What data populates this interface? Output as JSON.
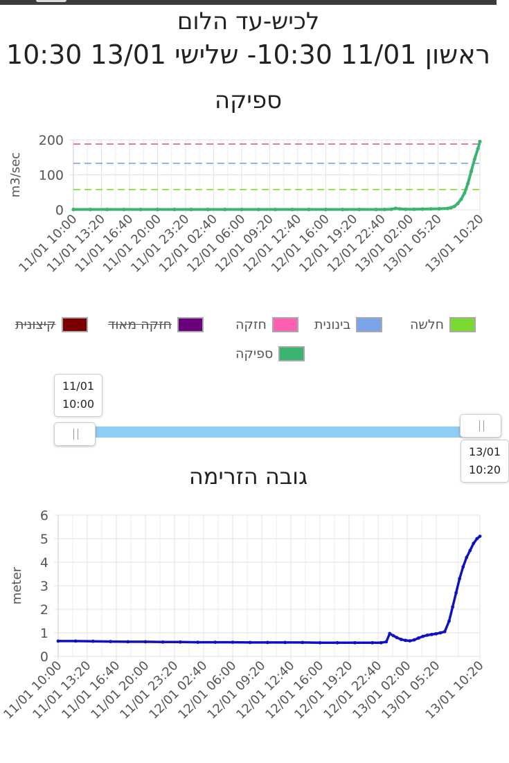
{
  "header": {
    "station_title": "לכיש-עד הלום",
    "date_range": "ראשון 11/01 10:30- שלישי 13/01 10:30"
  },
  "colors": {
    "flow": "#3cb371",
    "weak": "#7ad92e",
    "medium": "#7aa3e8",
    "strong": "#e8559b",
    "very_strong": "#6b007d",
    "extreme": "#7a0000",
    "height": "#1010c0",
    "slider": "#8fcdf2"
  },
  "legend": {
    "items": [
      {
        "label": "חלשה",
        "color": "#7ad92e",
        "active": true
      },
      {
        "label": "בינונית",
        "color": "#7aa3e8",
        "active": true
      },
      {
        "label": "חזקה",
        "color": "#ff5fb0",
        "active": true
      },
      {
        "label": "חזקה מאוד",
        "color": "#6b007d",
        "active": false
      },
      {
        "label": "קיצונית",
        "color": "#7a0000",
        "active": false
      },
      {
        "label": "ספיקה",
        "color": "#3cb371",
        "active": true
      }
    ]
  },
  "slider": {
    "start_date": "11/01",
    "start_time": "10:00",
    "end_date": "13/01",
    "end_time": "10:20"
  },
  "chart_data": [
    {
      "type": "line",
      "title": "ספיקה",
      "ylabel": "m3/sec",
      "ylim": [
        0,
        200
      ],
      "yticks": [
        0,
        100,
        200
      ],
      "xlim": [
        0,
        48.33
      ],
      "x_tick_labels": [
        "11/01 10:00",
        "11/01 13:20",
        "11/01 16:40",
        "11/01 20:00",
        "11/01 23:20",
        "12/01 02:40",
        "12/01 06:00",
        "12/01 09:20",
        "12/01 12:40",
        "12/01 16:00",
        "12/01 19:20",
        "12/01 22:40",
        "13/01 02:00",
        "13/01 05:20",
        "13/01 10:20"
      ],
      "x_tick_hours": [
        0,
        3.333,
        6.667,
        10,
        13.333,
        16.667,
        20,
        23.333,
        26.667,
        30,
        33.333,
        36.667,
        40,
        43.333,
        48.333
      ],
      "series": [
        {
          "name": "ספיקה",
          "x": [
            0,
            2,
            4,
            6,
            8,
            10,
            12,
            14,
            16,
            18,
            20,
            22,
            24,
            26,
            28,
            30,
            32,
            34,
            36,
            37,
            37.8,
            38.3,
            38.8,
            39.5,
            40.5,
            41.5,
            42.5,
            43.5,
            44.5,
            44.9,
            45.3,
            45.7,
            46.1,
            46.5,
            46.9,
            47.3,
            47.7,
            48.1,
            48.33
          ],
          "y": [
            1,
            1,
            1,
            1,
            1,
            1,
            1,
            1,
            1,
            1,
            1,
            1,
            1,
            1,
            1,
            1,
            1,
            1,
            1,
            1,
            1.5,
            4,
            2.5,
            1.5,
            1.5,
            2,
            2.5,
            3,
            4,
            6,
            10,
            18,
            30,
            48,
            75,
            110,
            145,
            175,
            195
          ]
        }
      ],
      "thresholds": [
        {
          "name": "חלשה",
          "value": 58
        },
        {
          "name": "בינונית",
          "value": 133
        },
        {
          "name": "חזקה",
          "value": 188
        }
      ]
    },
    {
      "type": "line",
      "title": "גובה הזרימה",
      "ylabel": "meter",
      "ylim": [
        0,
        6
      ],
      "yticks": [
        0,
        1,
        2,
        3,
        4,
        5,
        6
      ],
      "xlim": [
        0,
        48.33
      ],
      "x_tick_labels": [
        "11/01 10:00",
        "11/01 13:20",
        "11/01 16:40",
        "11/01 20:00",
        "11/01 23:20",
        "12/01 02:40",
        "12/01 06:00",
        "12/01 09:20",
        "12/01 12:40",
        "12/01 16:00",
        "12/01 19:20",
        "12/01 22:40",
        "13/01 02:00",
        "13/01 05:20",
        "13/01 10:20"
      ],
      "x_tick_hours": [
        0,
        3.333,
        6.667,
        10,
        13.333,
        16.667,
        20,
        23.333,
        26.667,
        30,
        33.333,
        36.667,
        40,
        43.333,
        48.333
      ],
      "series": [
        {
          "name": "",
          "x": [
            0,
            2,
            4,
            6,
            8,
            10,
            12,
            14,
            16,
            18,
            20,
            22,
            24,
            26,
            28,
            30,
            32,
            34,
            36,
            37,
            37.6,
            38,
            38.4,
            38.8,
            39.3,
            39.8,
            40.3,
            40.8,
            41.3,
            41.8,
            42.3,
            42.8,
            43.3,
            43.8,
            44.3,
            44.8,
            45.2,
            45.6,
            46,
            46.4,
            46.8,
            47.2,
            47.6,
            48,
            48.33
          ],
          "y": [
            0.65,
            0.65,
            0.64,
            0.63,
            0.62,
            0.62,
            0.61,
            0.61,
            0.6,
            0.6,
            0.6,
            0.59,
            0.59,
            0.59,
            0.59,
            0.58,
            0.58,
            0.58,
            0.58,
            0.58,
            0.62,
            0.97,
            0.88,
            0.8,
            0.72,
            0.68,
            0.66,
            0.7,
            0.78,
            0.85,
            0.9,
            0.93,
            0.96,
            1.0,
            1.05,
            1.5,
            2.1,
            2.7,
            3.3,
            3.8,
            4.2,
            4.5,
            4.8,
            5.0,
            5.1
          ]
        }
      ]
    }
  ]
}
